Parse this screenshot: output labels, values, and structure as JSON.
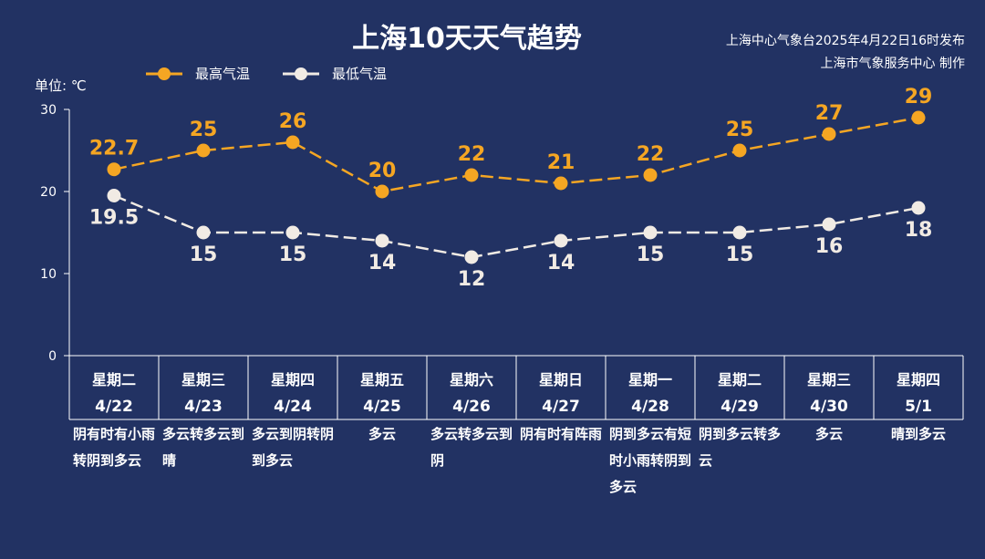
{
  "header": {
    "title": "上海10天天气趋势",
    "source_line1": "上海中心气象台2025年4月22日16时发布",
    "source_line2": "上海市气象服务中心 制作"
  },
  "colors": {
    "background": "#223263",
    "high": "#f5a623",
    "low": "#f1ebe4",
    "axis": "#ffffff"
  },
  "chart_data": {
    "type": "line",
    "unit_label": "单位: ℃",
    "ylim": [
      0,
      30
    ],
    "yticks": [
      0,
      10,
      20,
      30
    ],
    "legend_position": "top-left",
    "grid": false,
    "days": [
      {
        "weekday": "星期二",
        "date": "4/22",
        "weather": "阴有时有小雨转阴到多云"
      },
      {
        "weekday": "星期三",
        "date": "4/23",
        "weather": "多云转多云到晴"
      },
      {
        "weekday": "星期四",
        "date": "4/24",
        "weather": "多云到阴转阴到多云"
      },
      {
        "weekday": "星期五",
        "date": "4/25",
        "weather": "多云"
      },
      {
        "weekday": "星期六",
        "date": "4/26",
        "weather": "多云转多云到阴"
      },
      {
        "weekday": "星期日",
        "date": "4/27",
        "weather": "阴有时有阵雨"
      },
      {
        "weekday": "星期一",
        "date": "4/28",
        "weather": "阴到多云有短时小雨转阴到多云"
      },
      {
        "weekday": "星期二",
        "date": "4/29",
        "weather": "阴到多云转多云"
      },
      {
        "weekday": "星期三",
        "date": "4/30",
        "weather": "多云"
      },
      {
        "weekday": "星期四",
        "date": "5/1",
        "weather": "晴到多云"
      }
    ],
    "series": [
      {
        "name": "最高气温",
        "values": [
          22.7,
          25,
          26,
          20,
          22,
          21,
          22,
          25,
          27,
          29
        ]
      },
      {
        "name": "最低气温",
        "values": [
          19.5,
          15,
          15,
          14,
          12,
          14,
          15,
          15,
          16,
          18
        ]
      }
    ]
  }
}
